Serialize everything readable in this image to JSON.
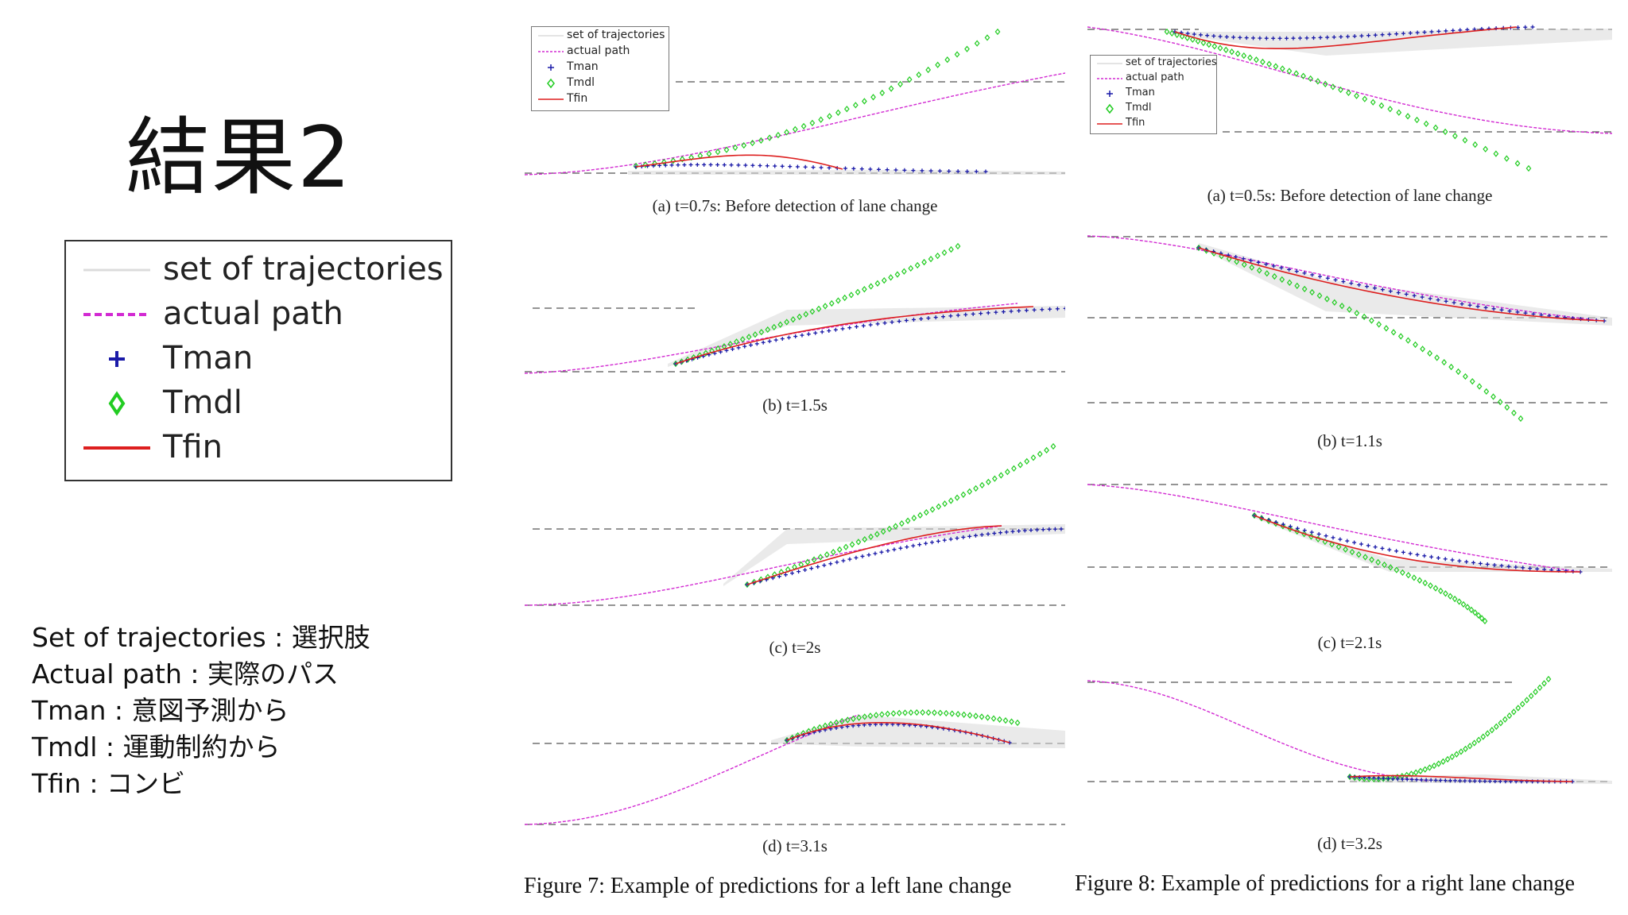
{
  "title": "結果2",
  "legend": {
    "items": [
      {
        "key": "set",
        "label": "set of trajectories"
      },
      {
        "key": "actual",
        "label": "actual path"
      },
      {
        "key": "tman",
        "label": "Tman"
      },
      {
        "key": "tmdl",
        "label": "Tmdl"
      },
      {
        "key": "tfin",
        "label": "Tfin"
      }
    ]
  },
  "definitions": [
    "Set of trajectories : 選択肢",
    "Actual path : 実際のパス",
    "Tman : 意図予測から",
    "Tmdl : 運動制約から",
    "Tfin : コンビ"
  ],
  "colors": {
    "actual": "#d22ad2",
    "tman": "#1a1aa8",
    "tmdl": "#22cc22",
    "tfin": "#dd1f1f",
    "set": "#d8d8d8",
    "lane": "#555555"
  },
  "figure7": {
    "caption": "Figure 7: Example of predictions for a left lane change",
    "panels": [
      {
        "caption": "(a) t=0.7s: Before detection of lane change"
      },
      {
        "caption": "(b) t=1.5s"
      },
      {
        "caption": "(c) t=2s"
      },
      {
        "caption": "(d) t=3.1s"
      }
    ]
  },
  "figure8": {
    "caption": "Figure 8: Example of predictions for a right lane change",
    "panels": [
      {
        "caption": "(a) t=0.5s: Before detection of lane change"
      },
      {
        "caption": "(b) t=1.1s"
      },
      {
        "caption": "(c) t=2.1s"
      },
      {
        "caption": "(d) t=3.2s"
      }
    ]
  }
}
